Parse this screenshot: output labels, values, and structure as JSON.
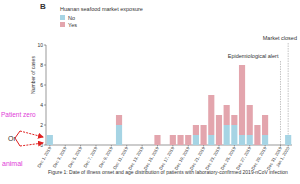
{
  "chart_data": {
    "type": "bar",
    "stacked": true,
    "title": "B",
    "caption": "Figure 1: Date of illness onset and age distribution of patients with laboratory-confirmed 2019-nCoV infection",
    "y_label": "Number of cases",
    "legend_title": "Huanan seafood market exposure",
    "categories": [
      "Dec 1, 2019",
      null,
      "Dec 3, 2019",
      null,
      "Dec 5, 2019",
      null,
      "Dec 7, 2019",
      null,
      "Dec 9, 2019",
      null,
      "Dec 11, 2019",
      null,
      "Dec 13, 2019",
      null,
      "Dec 15, 2019",
      null,
      "Dec 17, 2019",
      null,
      "Dec 19, 2019",
      null,
      "Dec 21, 2019",
      null,
      "Dec 23, 2019",
      null,
      "Dec 25, 2019",
      null,
      "Dec 27, 2019",
      null,
      "Dec 29, 2019",
      null,
      "Dec 31, 2019",
      "Jan 1, 2020"
    ],
    "series": [
      {
        "name": "No",
        "color": "#a6d4e4",
        "values": [
          1,
          0,
          0,
          0,
          0,
          0,
          0,
          0,
          0,
          2,
          0,
          0,
          0,
          0,
          0,
          0,
          0,
          0,
          0,
          1,
          0,
          1,
          0,
          2,
          2,
          1,
          1,
          0,
          1,
          0,
          0,
          1
        ]
      },
      {
        "name": "Yes",
        "color": "#e3a5ad",
        "values": [
          0,
          0,
          0,
          0,
          0,
          0,
          0,
          0,
          0,
          1,
          0,
          0,
          0,
          0,
          1,
          0,
          1,
          1,
          1,
          1,
          2,
          4,
          3,
          2,
          1,
          7,
          3,
          2,
          2,
          0,
          0,
          0
        ]
      }
    ],
    "ylim": [
      0,
      10
    ],
    "yticks": [
      0,
      2,
      4,
      6,
      8,
      10
    ],
    "annotations": [
      "Market closed",
      "Epidemiological alert",
      "Patient zero",
      "Or",
      "animal"
    ]
  }
}
